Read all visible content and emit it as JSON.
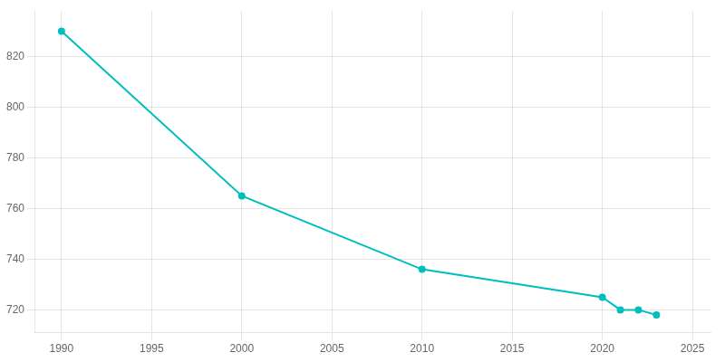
{
  "chart_data": {
    "type": "line",
    "x": [
      1990,
      2000,
      2010,
      2020,
      2021,
      2022,
      2023
    ],
    "values": [
      830,
      765,
      736,
      725,
      720,
      720,
      718
    ],
    "color": "#00BEBE",
    "marker": "circle",
    "xlim": [
      1988.5,
      2026
    ],
    "xticks": [
      1990,
      1995,
      2000,
      2005,
      2010,
      2015,
      2020,
      2025
    ],
    "ylim": [
      711,
      838
    ],
    "yticks": [
      720,
      740,
      760,
      780,
      800,
      820
    ],
    "grid": true
  }
}
